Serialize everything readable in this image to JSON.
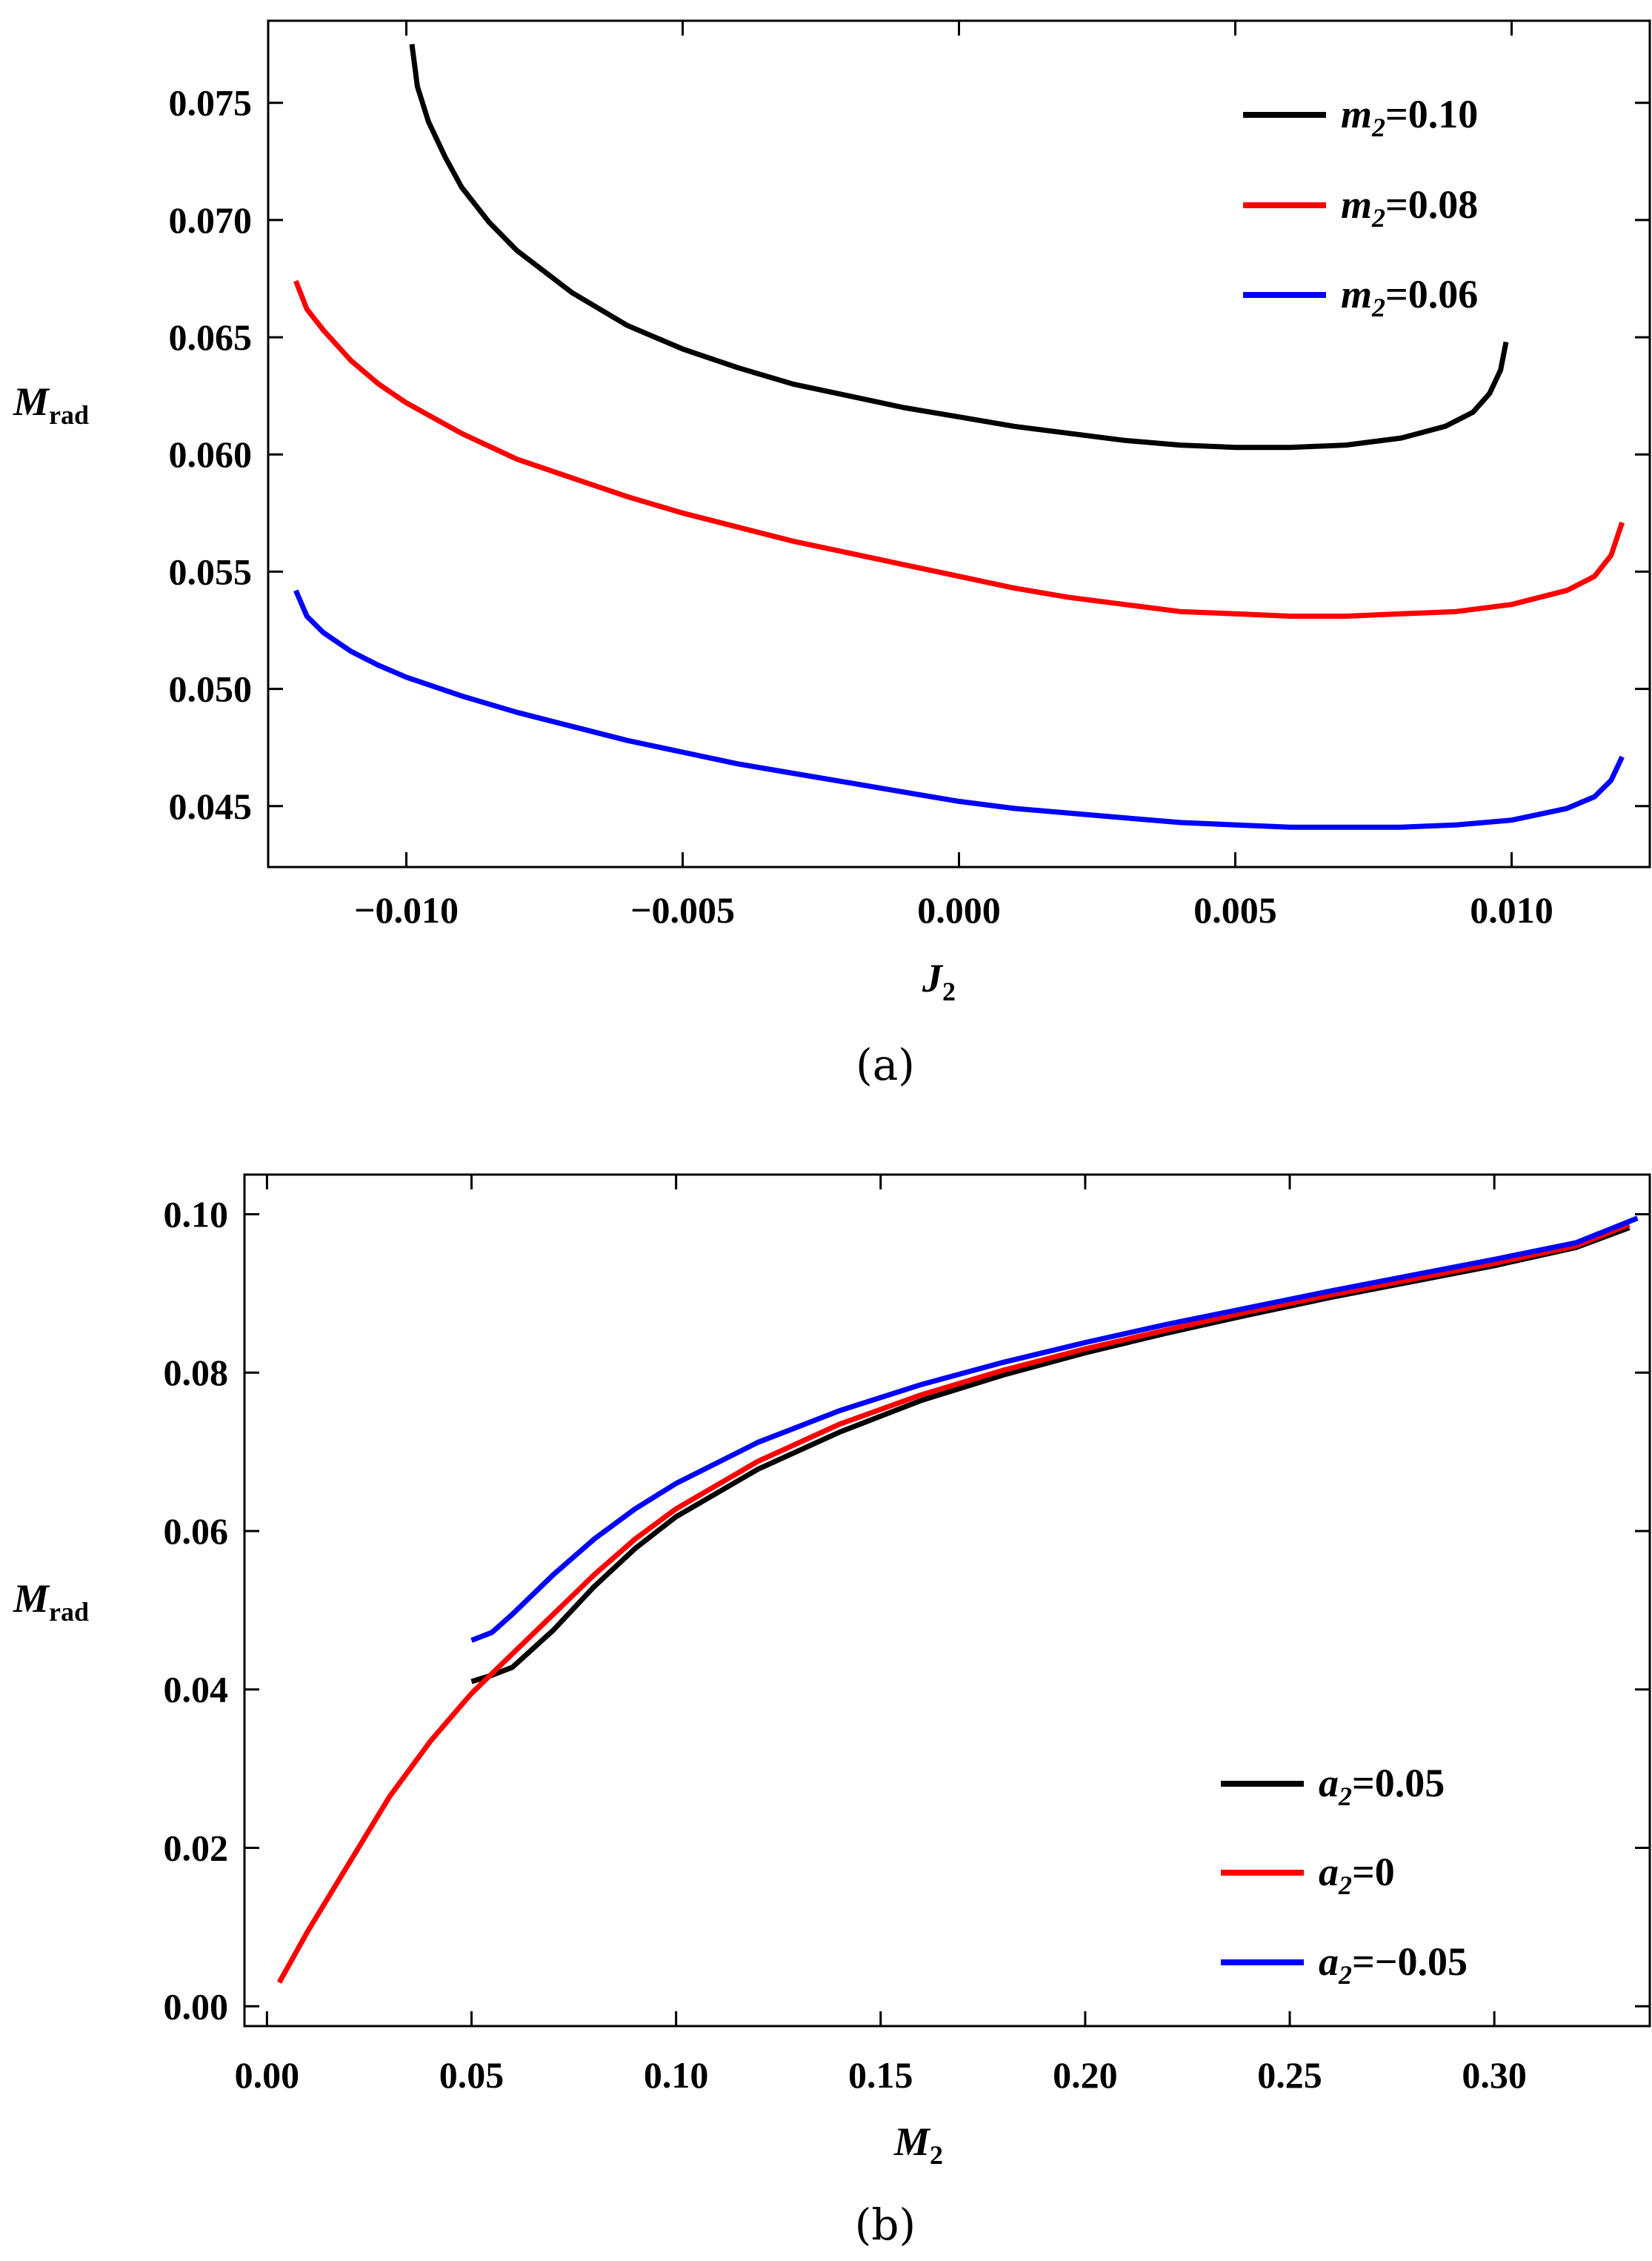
{
  "chart_data": [
    {
      "panel": "a",
      "type": "line",
      "caption": "(a)",
      "xlabel": {
        "main": "J",
        "sub": "2"
      },
      "ylabel": {
        "main": "M",
        "sub": "rad"
      },
      "xlim": [
        -0.0125,
        0.0125
      ],
      "ylim": [
        0.0424,
        0.0785
      ],
      "xticks": [
        -0.01,
        -0.005,
        0.0,
        0.005,
        0.01
      ],
      "xtick_labels": [
        "−0.010",
        "−0.005",
        "0.000",
        "0.005",
        "0.010"
      ],
      "yticks": [
        0.045,
        0.05,
        0.055,
        0.06,
        0.065,
        0.07,
        0.075
      ],
      "ytick_labels": [
        "0.045",
        "0.050",
        "0.055",
        "0.060",
        "0.065",
        "0.070",
        "0.075"
      ],
      "legend_position": "top-right",
      "series": [
        {
          "name": "m2=0.10",
          "legend_main": "m",
          "legend_sub": "2",
          "legend_value": "=0.10",
          "color": "#000000",
          "x": [
            -0.0099,
            -0.0098,
            -0.0096,
            -0.0093,
            -0.009,
            -0.0085,
            -0.008,
            -0.007,
            -0.006,
            -0.005,
            -0.004,
            -0.003,
            -0.002,
            -0.001,
            0.0,
            0.001,
            0.002,
            0.003,
            0.004,
            0.005,
            0.0055,
            0.006,
            0.007,
            0.008,
            0.0088,
            0.0093,
            0.0096,
            0.0098,
            0.0099
          ],
          "y": [
            0.0775,
            0.0757,
            0.0742,
            0.0727,
            0.0714,
            0.0699,
            0.0687,
            0.0669,
            0.0655,
            0.0645,
            0.0637,
            0.063,
            0.0625,
            0.062,
            0.0616,
            0.0612,
            0.0609,
            0.0606,
            0.0604,
            0.0603,
            0.0603,
            0.0603,
            0.0604,
            0.0607,
            0.0612,
            0.0618,
            0.0626,
            0.0636,
            0.0648
          ]
        },
        {
          "name": "m2=0.08",
          "legend_main": "m",
          "legend_sub": "2",
          "legend_value": "=0.08",
          "color": "#ff0000",
          "x": [
            -0.012,
            -0.0118,
            -0.0115,
            -0.011,
            -0.0105,
            -0.01,
            -0.009,
            -0.008,
            -0.007,
            -0.006,
            -0.005,
            -0.004,
            -0.003,
            -0.002,
            -0.001,
            0.0,
            0.001,
            0.002,
            0.003,
            0.004,
            0.005,
            0.006,
            0.007,
            0.008,
            0.009,
            0.01,
            0.011,
            0.0115,
            0.0118,
            0.012
          ],
          "y": [
            0.0674,
            0.0662,
            0.0653,
            0.064,
            0.063,
            0.0622,
            0.0609,
            0.0598,
            0.059,
            0.0582,
            0.0575,
            0.0569,
            0.0563,
            0.0558,
            0.0553,
            0.0548,
            0.0543,
            0.0539,
            0.0536,
            0.0533,
            0.0532,
            0.0531,
            0.0531,
            0.0532,
            0.0533,
            0.0536,
            0.0542,
            0.0548,
            0.0557,
            0.0571
          ]
        },
        {
          "name": "m2=0.06",
          "legend_main": "m",
          "legend_sub": "2",
          "legend_value": "=0.06",
          "color": "#0000ff",
          "x": [
            -0.012,
            -0.0118,
            -0.0115,
            -0.011,
            -0.0105,
            -0.01,
            -0.009,
            -0.008,
            -0.007,
            -0.006,
            -0.005,
            -0.004,
            -0.003,
            -0.002,
            -0.001,
            0.0,
            0.001,
            0.002,
            0.003,
            0.004,
            0.005,
            0.006,
            0.007,
            0.008,
            0.009,
            0.01,
            0.011,
            0.0115,
            0.0118,
            0.012
          ],
          "y": [
            0.0542,
            0.0531,
            0.0524,
            0.0516,
            0.051,
            0.0505,
            0.0497,
            0.049,
            0.0484,
            0.0478,
            0.0473,
            0.0468,
            0.0464,
            0.046,
            0.0456,
            0.0452,
            0.0449,
            0.0447,
            0.0445,
            0.0443,
            0.0442,
            0.0441,
            0.0441,
            0.0441,
            0.0442,
            0.0444,
            0.0449,
            0.0454,
            0.0461,
            0.0471
          ]
        }
      ]
    },
    {
      "panel": "b",
      "type": "line",
      "caption": "(b)",
      "xlabel": {
        "main": "M",
        "sub": "2"
      },
      "ylabel": {
        "main": "M",
        "sub": "rad"
      },
      "xlim": [
        -0.0055,
        0.338
      ],
      "ylim": [
        -0.0025,
        0.105
      ],
      "xticks": [
        0.0,
        0.05,
        0.1,
        0.15,
        0.2,
        0.25,
        0.3
      ],
      "xtick_labels": [
        "0.00",
        "0.05",
        "0.10",
        "0.15",
        "0.20",
        "0.25",
        "0.30"
      ],
      "yticks": [
        0.0,
        0.02,
        0.04,
        0.06,
        0.08,
        0.1
      ],
      "ytick_labels": [
        "0.00",
        "0.02",
        "0.04",
        "0.06",
        "0.08",
        "0.10"
      ],
      "legend_position": "bottom-right",
      "series": [
        {
          "name": "a2=0.05",
          "legend_main": "a",
          "legend_sub": "2",
          "legend_value": "=0.05",
          "color": "#000000",
          "x": [
            0.05,
            0.055,
            0.06,
            0.07,
            0.08,
            0.09,
            0.1,
            0.12,
            0.14,
            0.16,
            0.18,
            0.2,
            0.22,
            0.24,
            0.26,
            0.28,
            0.3,
            0.32,
            0.333
          ],
          "y": [
            0.041,
            0.0418,
            0.0428,
            0.0475,
            0.053,
            0.0578,
            0.0618,
            0.0678,
            0.0725,
            0.0765,
            0.0797,
            0.0825,
            0.085,
            0.0873,
            0.0895,
            0.0915,
            0.0935,
            0.0958,
            0.0983
          ]
        },
        {
          "name": "a2=0",
          "legend_main": "a",
          "legend_sub": "2",
          "legend_value": "=0",
          "color": "#ff0000",
          "x": [
            0.003,
            0.01,
            0.02,
            0.03,
            0.04,
            0.05,
            0.06,
            0.07,
            0.08,
            0.09,
            0.1,
            0.12,
            0.14,
            0.16,
            0.18,
            0.2,
            0.22,
            0.24,
            0.26,
            0.28,
            0.3,
            0.32,
            0.333
          ],
          "y": [
            0.003,
            0.0095,
            0.018,
            0.0265,
            0.0335,
            0.0395,
            0.0445,
            0.0495,
            0.0545,
            0.059,
            0.0628,
            0.0688,
            0.0735,
            0.0772,
            0.0803,
            0.083,
            0.0854,
            0.0877,
            0.0898,
            0.0918,
            0.0938,
            0.096,
            0.0987
          ]
        },
        {
          "name": "a2=−0.05",
          "legend_main": "a",
          "legend_sub": "2",
          "legend_value": "=−0.05",
          "color": "#0000ff",
          "x": [
            0.05,
            0.055,
            0.06,
            0.07,
            0.08,
            0.09,
            0.1,
            0.12,
            0.14,
            0.16,
            0.18,
            0.2,
            0.22,
            0.24,
            0.26,
            0.28,
            0.3,
            0.32,
            0.335
          ],
          "y": [
            0.0462,
            0.0472,
            0.0495,
            0.0545,
            0.059,
            0.0628,
            0.066,
            0.0712,
            0.0752,
            0.0785,
            0.0813,
            0.0838,
            0.0861,
            0.0882,
            0.0903,
            0.0923,
            0.0943,
            0.0964,
            0.0995
          ]
        }
      ]
    }
  ]
}
